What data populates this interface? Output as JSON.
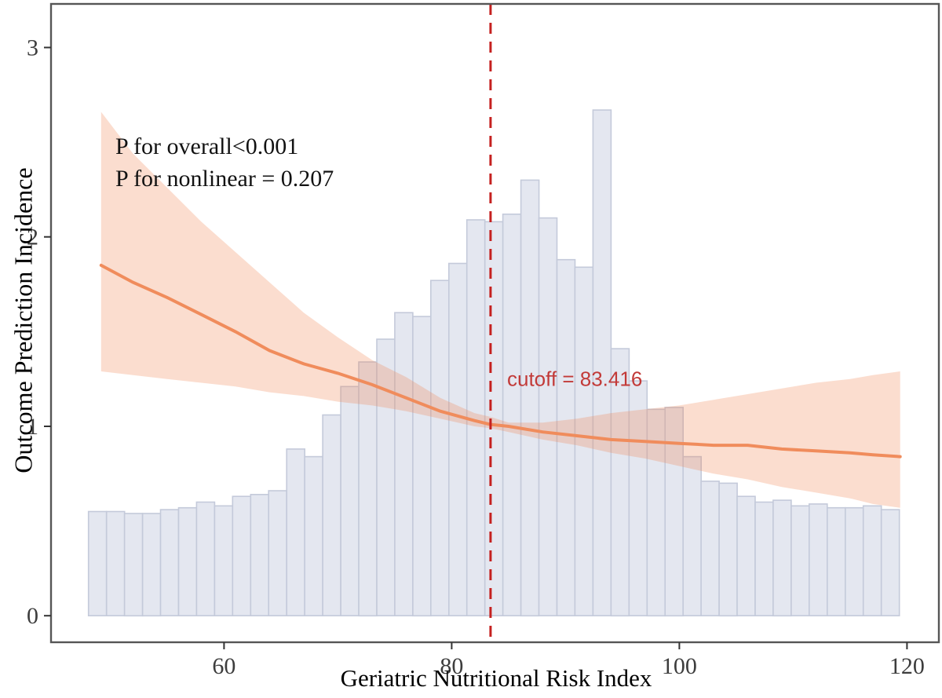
{
  "figure": {
    "background": "#ffffff"
  },
  "chart_data": {
    "type": "line",
    "subtype": "restricted-cubic-spline-with-histogram",
    "title": "",
    "xlabel": "Geriatric Nutritional Risk Index",
    "ylabel": "Outcome Prediction Incidence",
    "xlim": [
      44.8,
      122.8
    ],
    "ylim": [
      -0.14,
      3.23
    ],
    "x_ticks": [
      60,
      80,
      100,
      120
    ],
    "y_ticks": [
      0,
      1,
      2,
      3
    ],
    "grid": false,
    "legend": "none",
    "annotations": {
      "p_overall": "P for overall<0.001",
      "p_nonlinear": "P for nonlinear = 0.207",
      "cutoff_label": "cutoff = 83.416",
      "cutoff_value": 83.416
    },
    "histogram": {
      "bin_start": 48.09,
      "bin_width": 1.583,
      "heights": [
        0.55,
        0.55,
        0.54,
        0.54,
        0.56,
        0.57,
        0.6,
        0.58,
        0.63,
        0.64,
        0.66,
        0.88,
        0.84,
        1.06,
        1.21,
        1.34,
        1.46,
        1.6,
        1.58,
        1.77,
        1.86,
        2.09,
        2.08,
        2.12,
        2.3,
        2.1,
        1.88,
        1.84,
        2.67,
        1.41,
        1.24,
        1.09,
        1.1,
        0.84,
        0.71,
        0.7,
        0.63,
        0.6,
        0.61,
        0.58,
        0.59,
        0.57,
        0.57,
        0.58,
        0.56
      ]
    },
    "spline": {
      "x": [
        49.2,
        52,
        55,
        58,
        61,
        64,
        67,
        70,
        73,
        76,
        79,
        82,
        83.4,
        85,
        88,
        91,
        94,
        97,
        100,
        103,
        106,
        109,
        112,
        115,
        117,
        119.4
      ],
      "y": [
        1.85,
        1.76,
        1.68,
        1.59,
        1.5,
        1.4,
        1.33,
        1.28,
        1.22,
        1.15,
        1.08,
        1.03,
        1.01,
        1.0,
        0.97,
        0.95,
        0.93,
        0.92,
        0.91,
        0.9,
        0.9,
        0.88,
        0.87,
        0.86,
        0.85,
        0.84
      ],
      "ci_lower": [
        1.29,
        1.27,
        1.25,
        1.23,
        1.21,
        1.18,
        1.16,
        1.13,
        1.11,
        1.08,
        1.04,
        1.0,
        0.99,
        0.97,
        0.93,
        0.9,
        0.86,
        0.83,
        0.79,
        0.75,
        0.72,
        0.68,
        0.65,
        0.62,
        0.59,
        0.57
      ],
      "ci_upper": [
        2.66,
        2.44,
        2.26,
        2.08,
        1.92,
        1.76,
        1.6,
        1.47,
        1.35,
        1.26,
        1.15,
        1.07,
        1.05,
        1.02,
        1.02,
        1.04,
        1.07,
        1.09,
        1.11,
        1.14,
        1.17,
        1.2,
        1.23,
        1.25,
        1.27,
        1.29
      ]
    },
    "colors": {
      "bar_fill": "#e4e7f0",
      "bar_stroke": "#c4cada",
      "band_fill_rgba": "rgba(242,132,82,0.28)",
      "spline_line": "#f08c5c",
      "cutoff_line": "#c5201f",
      "cutoff_text": "#c23a38",
      "panel_border": "#565656",
      "tick_mark": "#333333",
      "tick_text": "#3d3d3d",
      "axis_title_text": "#000000",
      "annotation_text": "#121212"
    }
  }
}
